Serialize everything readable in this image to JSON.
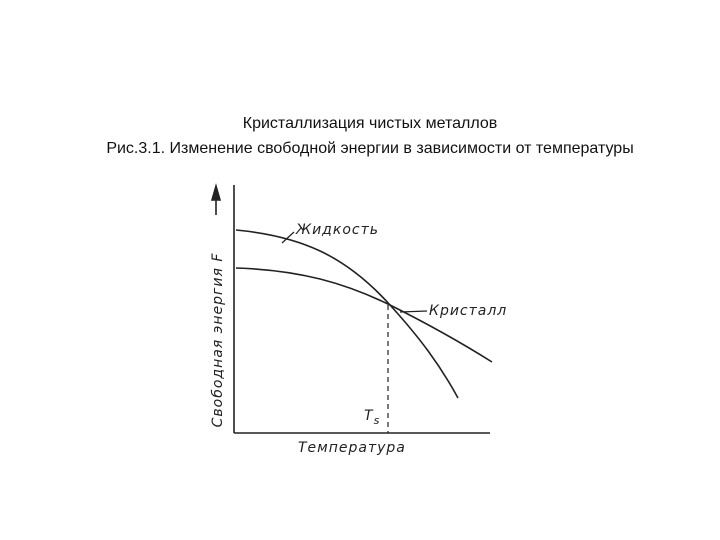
{
  "header": {
    "title": "Кристаллизация чистых металлов",
    "caption": "Рис.3.1. Изменение свободной энергии в зависимости от температуры"
  },
  "diagram": {
    "y_axis_label": "Свободная энергия F",
    "x_axis_label": "Температура",
    "curves": [
      {
        "label": "Жидкость"
      },
      {
        "label": "Кристалл"
      }
    ],
    "marker": {
      "symbol": "T",
      "subscript": "s"
    }
  }
}
